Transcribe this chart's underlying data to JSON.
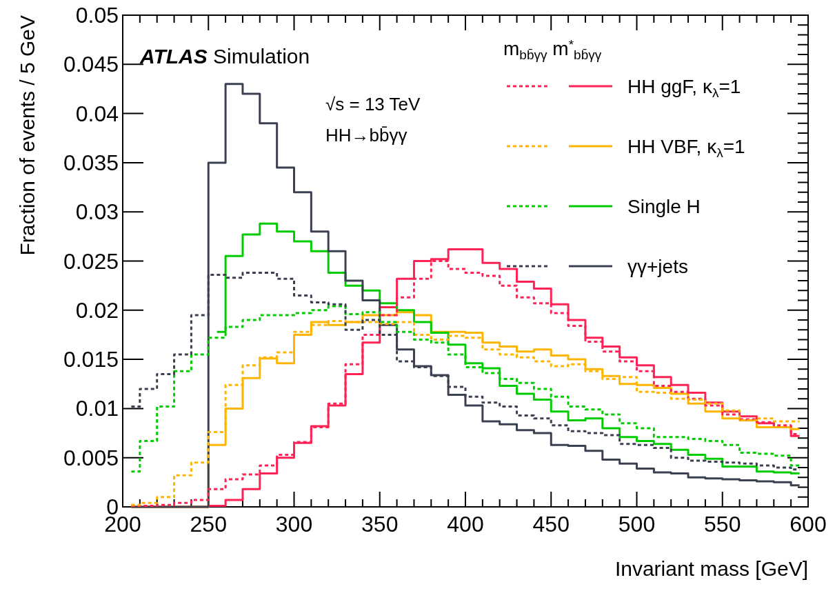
{
  "chart_data": {
    "type": "step",
    "xlabel": "Invariant mass [GeV]",
    "ylabel": "Fraction of events / 5 GeV",
    "legend_title": "m$_{bb̄γγ}$ m$^{*}$$_{bb̄γγ}$",
    "annotations": [
      "ATLAS Simulation",
      "√s = 13 TeV",
      "HH→bb̄γγ"
    ],
    "legend": "top right",
    "xlim": [
      200,
      600
    ],
    "xticks": [
      200,
      250,
      300,
      350,
      400,
      450,
      500,
      550,
      600
    ],
    "ylim": [
      0,
      0.05
    ],
    "yticks": [
      0,
      0.005,
      0.01,
      0.015,
      0.02,
      0.025,
      0.03,
      0.035,
      0.04,
      0.045,
      0.05
    ],
    "x": [
      205,
      215,
      225,
      235,
      245,
      255,
      265,
      275,
      285,
      295,
      305,
      315,
      325,
      335,
      345,
      355,
      365,
      375,
      385,
      395,
      405,
      415,
      425,
      435,
      445,
      455,
      465,
      475,
      485,
      495,
      505,
      515,
      525,
      535,
      545,
      555,
      565,
      575,
      585,
      595
    ],
    "series": [
      {
        "color": "#ff2255",
        "line_style": "dashed",
        "values": [
          0.0001,
          0.0001,
          0.0002,
          0.0004,
          0.0007,
          0.0018,
          0.0028,
          0.0033,
          0.0042,
          0.0053,
          0.0066,
          0.0081,
          0.0105,
          0.0145,
          0.0175,
          0.0195,
          0.0213,
          0.0232,
          0.025,
          0.0242,
          0.0238,
          0.0235,
          0.0225,
          0.0213,
          0.0207,
          0.0197,
          0.0184,
          0.0168,
          0.0158,
          0.0148,
          0.0138,
          0.0123,
          0.0117,
          0.011,
          0.0103,
          0.0094,
          0.0089,
          0.0086,
          0.0083,
          0.0074
        ]
      },
      {
        "name": "HH ggF, κ$_{λ}$=1",
        "color": "#ff2255",
        "line_style": "solid",
        "values": [
          0,
          0,
          0,
          0,
          0,
          0.0001,
          0.0007,
          0.0018,
          0.0034,
          0.005,
          0.0065,
          0.0082,
          0.0103,
          0.0135,
          0.0167,
          0.0203,
          0.0232,
          0.025,
          0.0252,
          0.0262,
          0.0262,
          0.0248,
          0.0242,
          0.0229,
          0.0222,
          0.0206,
          0.019,
          0.0172,
          0.0163,
          0.0152,
          0.0144,
          0.0132,
          0.0124,
          0.0116,
          0.0106,
          0.0097,
          0.0092,
          0.0085,
          0.0081,
          0.0072
        ]
      },
      {
        "color": "#ffb400",
        "line_style": "dashed",
        "values": [
          0.0002,
          0.0004,
          0.001,
          0.0032,
          0.0045,
          0.0076,
          0.0124,
          0.0144,
          0.0152,
          0.0157,
          0.0178,
          0.0185,
          0.0189,
          0.0188,
          0.0188,
          0.0186,
          0.0188,
          0.0175,
          0.017,
          0.0174,
          0.0172,
          0.016,
          0.0155,
          0.0152,
          0.0148,
          0.0143,
          0.0145,
          0.0138,
          0.013,
          0.0132,
          0.0117,
          0.0116,
          0.011,
          0.0109,
          0.0105,
          0.0098,
          0.0088,
          0.009,
          0.0087,
          0.0087
        ]
      },
      {
        "name": "HH VBF, κ$_{λ}$=1",
        "color": "#ffb400",
        "line_style": "solid",
        "values": [
          0,
          0,
          0,
          0,
          0,
          0.0063,
          0.01,
          0.0131,
          0.0151,
          0.0146,
          0.0175,
          0.0188,
          0.0185,
          0.0188,
          0.0195,
          0.0195,
          0.0198,
          0.0195,
          0.0178,
          0.0178,
          0.0177,
          0.0167,
          0.0163,
          0.0158,
          0.016,
          0.0154,
          0.015,
          0.014,
          0.0133,
          0.0125,
          0.0124,
          0.0121,
          0.0115,
          0.0105,
          0.0097,
          0.009,
          0.0088,
          0.0081,
          0.0081,
          0.0079
        ]
      },
      {
        "color": "#00cc00",
        "line_style": "dashed",
        "values": [
          0.0036,
          0.0067,
          0.0102,
          0.0138,
          0.0155,
          0.0172,
          0.0183,
          0.019,
          0.0195,
          0.0195,
          0.0197,
          0.02,
          0.0204,
          0.0196,
          0.0198,
          0.0188,
          0.0178,
          0.017,
          0.0167,
          0.0155,
          0.0142,
          0.0136,
          0.013,
          0.0126,
          0.012,
          0.0112,
          0.0102,
          0.0099,
          0.0094,
          0.0085,
          0.008,
          0.0071,
          0.0071,
          0.0069,
          0.0067,
          0.0063,
          0.0055,
          0.0054,
          0.0052,
          0.0042
        ]
      },
      {
        "name": "Single H",
        "color": "#00cc00",
        "line_style": "solid",
        "values": [
          null,
          null,
          null,
          null,
          null,
          0.0178,
          0.0255,
          0.0277,
          0.0288,
          0.028,
          0.027,
          0.026,
          0.0238,
          0.0225,
          0.022,
          0.0207,
          0.02,
          0.0188,
          0.0177,
          0.0165,
          0.0146,
          0.0141,
          0.0123,
          0.0115,
          0.0109,
          0.0097,
          0.0088,
          0.009,
          0.008,
          0.0071,
          0.0067,
          0.0064,
          0.0058,
          0.0053,
          0.0049,
          0.0041,
          0.0041,
          0.0036,
          0.0035,
          0.0034
        ]
      },
      {
        "color": "#3b4050",
        "line_style": "dashed",
        "values": [
          0.0102,
          0.012,
          0.0135,
          0.0155,
          0.0195,
          0.0236,
          0.0233,
          0.0238,
          0.0238,
          0.0232,
          0.0215,
          0.0208,
          0.0206,
          0.018,
          0.019,
          0.0175,
          0.0148,
          0.0142,
          0.0133,
          0.0122,
          0.0112,
          0.0106,
          0.0102,
          0.0093,
          0.009,
          0.0083,
          0.0077,
          0.0075,
          0.0073,
          0.0064,
          0.0063,
          0.006,
          0.005,
          0.0047,
          0.0046,
          0.0045,
          0.0044,
          0.0042,
          0.004,
          0.0038
        ]
      },
      {
        "name": "γγ+jets",
        "color": "#3b4050",
        "line_style": "solid",
        "values": [
          0,
          0,
          0,
          0,
          0,
          0.035,
          0.043,
          0.042,
          0.039,
          0.0345,
          0.032,
          0.028,
          0.026,
          0.023,
          0.021,
          0.0185,
          0.016,
          0.0143,
          0.0134,
          0.0114,
          0.0103,
          0.0087,
          0.0084,
          0.0078,
          0.0075,
          0.0063,
          0.0062,
          0.0057,
          0.0048,
          0.0044,
          0.0039,
          0.0035,
          0.0034,
          0.003,
          0.0029,
          0.0028,
          0.0027,
          0.0026,
          0.0025,
          0.0022
        ]
      }
    ]
  }
}
